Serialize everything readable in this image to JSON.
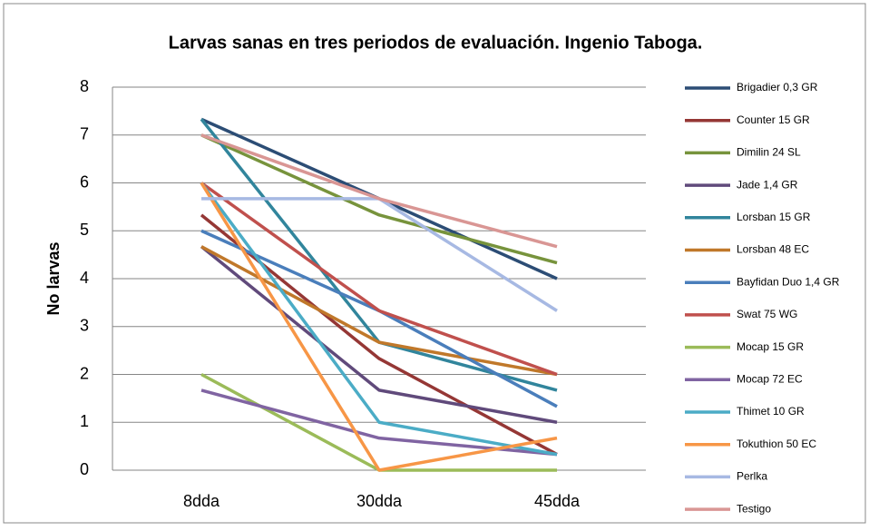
{
  "chart_data": {
    "type": "line",
    "title": "Larvas sanas en tres periodos de evaluación. Ingenio Taboga.",
    "y_label": "No larvas",
    "categories": [
      "8dda",
      "30dda",
      "45dda"
    ],
    "ylim": [
      0,
      8
    ],
    "yticks": [
      0,
      1,
      2,
      3,
      4,
      5,
      6,
      7,
      8
    ],
    "grid": true,
    "legend": "right",
    "series": [
      {
        "name": "Brigadier 0,3 GR",
        "color": "#2c4d75",
        "values": [
          7.33,
          5.67,
          4
        ]
      },
      {
        "name": "Counter 15 GR",
        "color": "#953735",
        "values": [
          5.33,
          2.33,
          0.33
        ]
      },
      {
        "name": "Dimilin 24 SL",
        "color": "#77933c",
        "values": [
          7,
          5.33,
          4.33
        ]
      },
      {
        "name": "Jade 1,4 GR",
        "color": "#604a7b",
        "values": [
          4.67,
          1.67,
          1
        ]
      },
      {
        "name": "Lorsban 15 GR",
        "color": "#31859c",
        "values": [
          7.33,
          2.67,
          1.67
        ]
      },
      {
        "name": "Lorsban 48 EC",
        "color": "#c0782a",
        "values": [
          4.67,
          2.67,
          2
        ]
      },
      {
        "name": "Bayfidan Duo 1,4 GR",
        "color": "#4a7ebb",
        "values": [
          5,
          3.33,
          1.33
        ]
      },
      {
        "name": "Swat 75 WG",
        "color": "#c0504d",
        "values": [
          6,
          3.33,
          2
        ]
      },
      {
        "name": "Mocap 15 GR",
        "color": "#9bbb59",
        "values": [
          2,
          0,
          0
        ]
      },
      {
        "name": "Mocap 72 EC",
        "color": "#8064a2",
        "values": [
          1.67,
          0.67,
          0.33
        ]
      },
      {
        "name": "Thimet 10 GR",
        "color": "#4bacc6",
        "values": [
          6,
          1,
          0.33
        ]
      },
      {
        "name": "Tokuthion 50 EC",
        "color": "#f79646",
        "values": [
          6,
          0,
          0.67
        ]
      },
      {
        "name": "Perlka",
        "color": "#a7b9e3",
        "values": [
          5.67,
          5.67,
          3.33
        ]
      },
      {
        "name": "Testigo",
        "color": "#d99694",
        "values": [
          7,
          5.67,
          4.67
        ]
      }
    ]
  }
}
